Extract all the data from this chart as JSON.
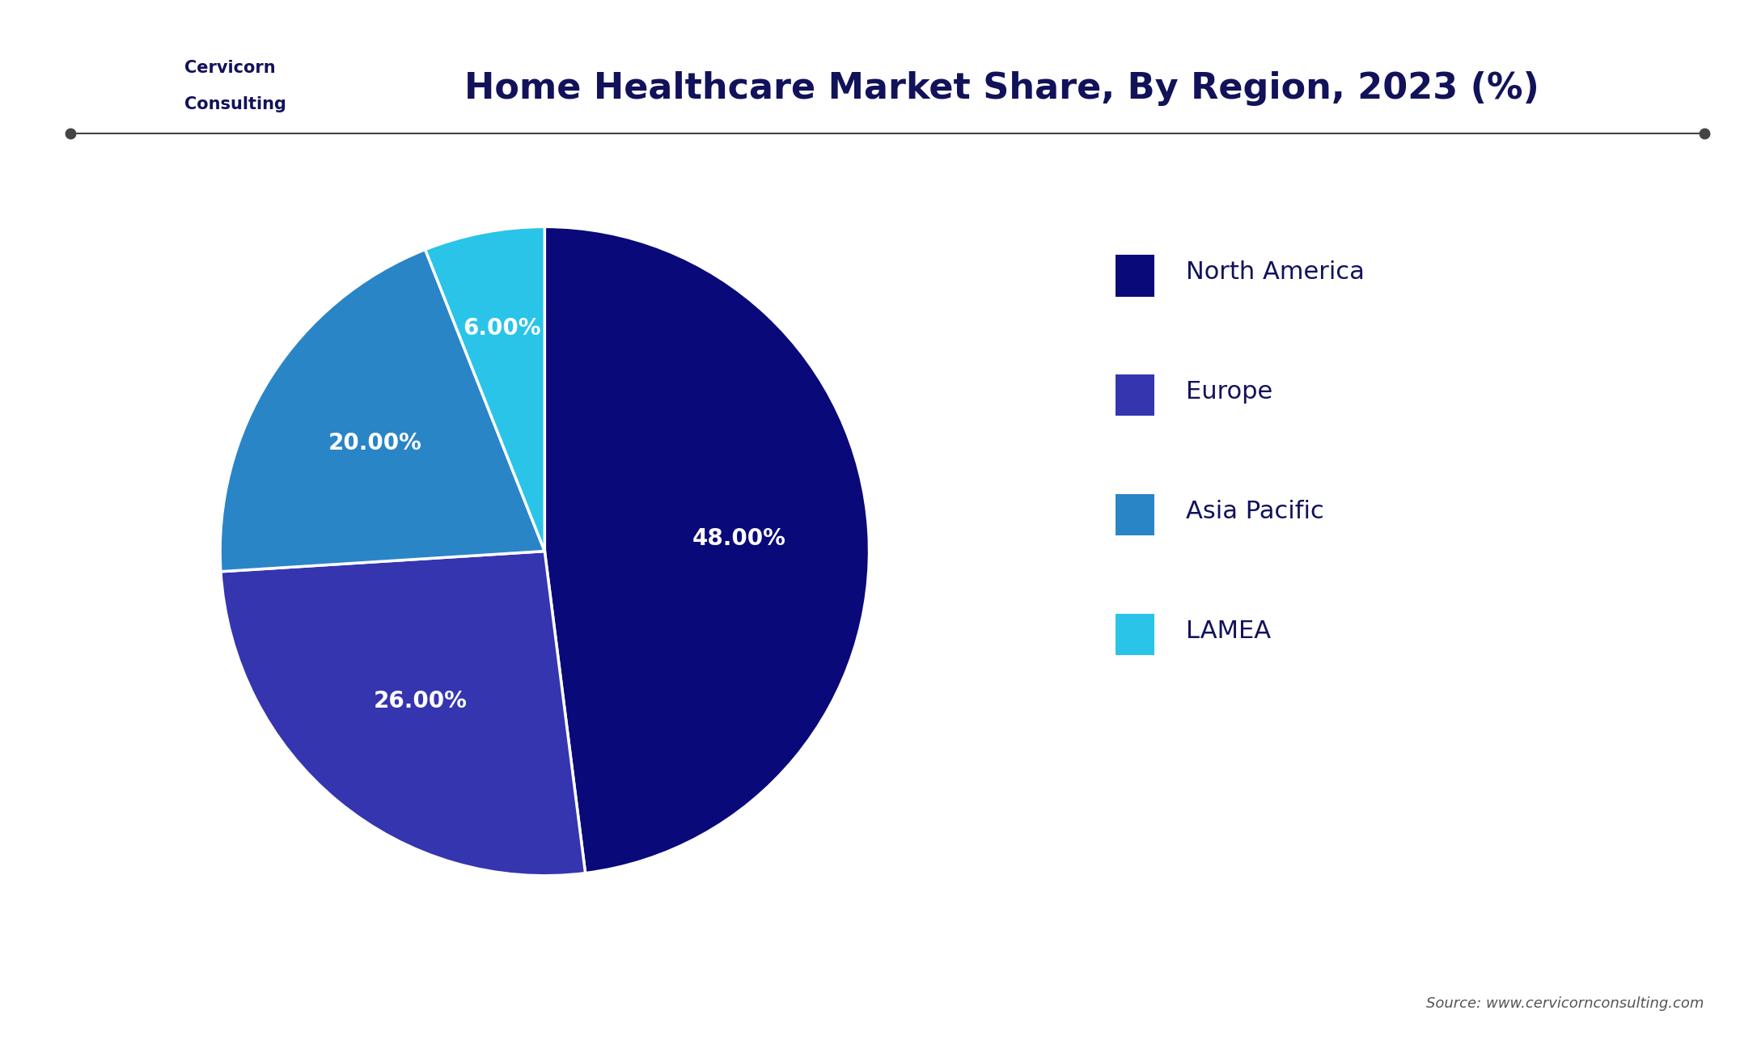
{
  "title": "Home Healthcare Market Share, By Region, 2023 (%)",
  "slices": [
    48.0,
    26.0,
    20.0,
    6.0
  ],
  "labels": [
    "48.00%",
    "26.00%",
    "20.00%",
    "6.00%"
  ],
  "legend_labels": [
    "North America",
    "Europe",
    "Asia Pacific",
    "LAMEA"
  ],
  "colors": [
    "#090979",
    "#3535b0",
    "#2a85c7",
    "#29c4e8"
  ],
  "startangle": 90,
  "background_color": "#ffffff",
  "title_color": "#12125a",
  "title_fontsize": 32,
  "label_fontsize": 20,
  "legend_fontsize": 22,
  "legend_text_color": "#12125a",
  "source_text": "Source: www.cervicornconsulting.com",
  "wedge_edge_color": "#ffffff",
  "wedge_linewidth": 2.5,
  "line_color": "#444444",
  "logo_bg_color": "#1a5f8a",
  "logo_text_color": "#12125a"
}
